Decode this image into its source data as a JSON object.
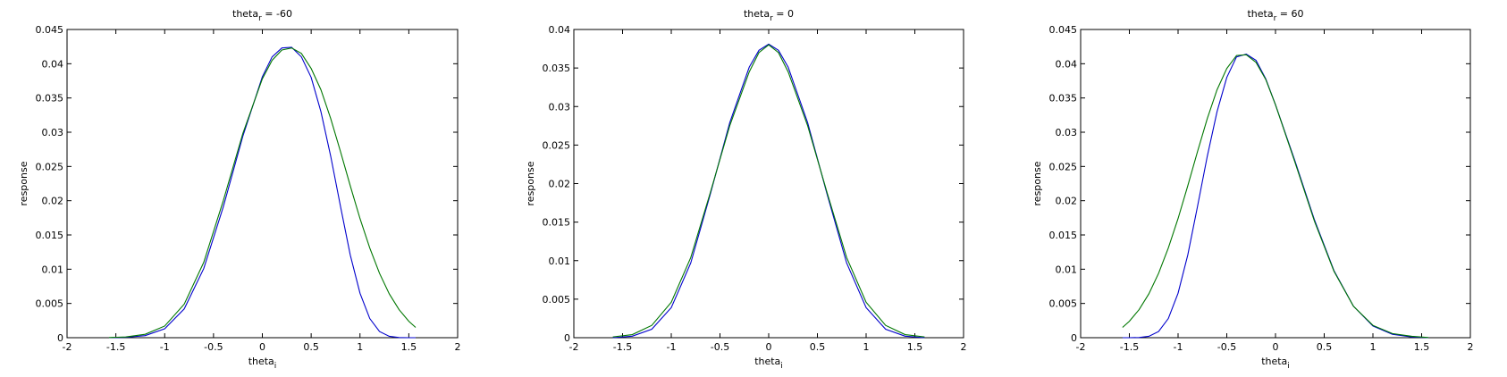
{
  "chart_data": [
    {
      "type": "line",
      "title": "theta",
      "title_sub": "r",
      "title_suffix": " = -60",
      "xlabel": "theta",
      "xlabel_sub": "i",
      "ylabel": "response",
      "xlim": [
        -2,
        2
      ],
      "ylim": [
        0,
        0.045
      ],
      "xticks": [
        -2,
        -1.5,
        -1,
        -0.5,
        0,
        0.5,
        1,
        1.5,
        2
      ],
      "xtick_labels": [
        "-2",
        "-1.5",
        "-1",
        "-0.5",
        "0",
        "0.5",
        "1",
        "1.5",
        "2"
      ],
      "yticks": [
        0,
        0.005,
        0.01,
        0.015,
        0.02,
        0.025,
        0.03,
        0.035,
        0.04,
        0.045
      ],
      "ytick_labels": [
        "0",
        "0.005",
        "0.01",
        "0.015",
        "0.02",
        "0.025",
        "0.03",
        "0.035",
        "0.04",
        "0.045"
      ],
      "grid": false,
      "series": [
        {
          "color": "#0000cc",
          "x": [
            -1.57,
            -1.4,
            -1.2,
            -1.0,
            -0.8,
            -0.6,
            -0.4,
            -0.2,
            0.0,
            0.1,
            0.2,
            0.3,
            0.4,
            0.5,
            0.6,
            0.7,
            0.8,
            0.9,
            1.0,
            1.1,
            1.2,
            1.3,
            1.4,
            1.5,
            1.57
          ],
          "y": [
            0,
            5e-05,
            0.0003,
            0.0013,
            0.0042,
            0.0101,
            0.0191,
            0.0294,
            0.0381,
            0.041,
            0.0423,
            0.0424,
            0.041,
            0.038,
            0.033,
            0.0265,
            0.0192,
            0.0121,
            0.0065,
            0.0028,
            0.0009,
            0.0002,
            3e-05,
            0,
            0
          ]
        },
        {
          "color": "#007700",
          "x": [
            -1.57,
            -1.4,
            -1.2,
            -1.0,
            -0.8,
            -0.6,
            -0.4,
            -0.2,
            0.0,
            0.1,
            0.2,
            0.3,
            0.4,
            0.5,
            0.6,
            0.7,
            0.8,
            0.9,
            1.0,
            1.1,
            1.2,
            1.3,
            1.4,
            1.5,
            1.57
          ],
          "y": [
            3e-05,
            0.0001,
            0.0005,
            0.0017,
            0.0049,
            0.011,
            0.02,
            0.0298,
            0.0378,
            0.0405,
            0.042,
            0.0423,
            0.0415,
            0.0393,
            0.0362,
            0.032,
            0.0272,
            0.0222,
            0.0174,
            0.0131,
            0.0094,
            0.0064,
            0.0041,
            0.0024,
            0.0015
          ]
        }
      ]
    },
    {
      "type": "line",
      "title": "theta",
      "title_sub": "r",
      "title_suffix": " = 0",
      "xlabel": "theta",
      "xlabel_sub": "i",
      "ylabel": "response",
      "xlim": [
        -2,
        2
      ],
      "ylim": [
        0,
        0.04
      ],
      "xticks": [
        -2,
        -1.5,
        -1,
        -0.5,
        0,
        0.5,
        1,
        1.5,
        2
      ],
      "xtick_labels": [
        "-2",
        "-1.5",
        "-1",
        "-0.5",
        "0",
        "0.5",
        "1",
        "1.5",
        "2"
      ],
      "yticks": [
        0,
        0.005,
        0.01,
        0.015,
        0.02,
        0.025,
        0.03,
        0.035,
        0.04
      ],
      "ytick_labels": [
        "0",
        "0.005",
        "0.01",
        "0.015",
        "0.02",
        "0.025",
        "0.03",
        "0.035",
        "0.04"
      ],
      "grid": false,
      "series": [
        {
          "color": "#0000cc",
          "x": [
            -1.6,
            -1.4,
            -1.2,
            -1.0,
            -0.8,
            -0.6,
            -0.4,
            -0.2,
            -0.1,
            0.0,
            0.1,
            0.2,
            0.4,
            0.6,
            0.8,
            1.0,
            1.2,
            1.4,
            1.6
          ],
          "y": [
            0,
            0.0002,
            0.0011,
            0.0039,
            0.0097,
            0.0186,
            0.0279,
            0.0351,
            0.0373,
            0.0381,
            0.0373,
            0.0351,
            0.0279,
            0.0186,
            0.0097,
            0.0039,
            0.0011,
            0.0002,
            0
          ]
        },
        {
          "color": "#007700",
          "x": [
            -1.6,
            -1.4,
            -1.2,
            -1.0,
            -0.8,
            -0.6,
            -0.4,
            -0.2,
            -0.1,
            0.0,
            0.1,
            0.2,
            0.4,
            0.6,
            0.8,
            1.0,
            1.2,
            1.4,
            1.6
          ],
          "y": [
            0.0001,
            0.0004,
            0.0016,
            0.0046,
            0.0104,
            0.0188,
            0.0275,
            0.0345,
            0.037,
            0.038,
            0.037,
            0.0345,
            0.0275,
            0.0188,
            0.0104,
            0.0046,
            0.0016,
            0.0004,
            0.0001
          ]
        }
      ]
    },
    {
      "type": "line",
      "title": "theta",
      "title_sub": "r",
      "title_suffix": " = 60",
      "xlabel": "theta",
      "xlabel_sub": "i",
      "ylabel": "response",
      "xlim": [
        -2,
        2
      ],
      "ylim": [
        0,
        0.045
      ],
      "xticks": [
        -2,
        -1.5,
        -1,
        -0.5,
        0,
        0.5,
        1,
        1.5,
        2
      ],
      "xtick_labels": [
        "-2",
        "-1.5",
        "-1",
        "-0.5",
        "0",
        "0.5",
        "1",
        "1.5",
        "2"
      ],
      "yticks": [
        0,
        0.005,
        0.01,
        0.015,
        0.02,
        0.025,
        0.03,
        0.035,
        0.04,
        0.045
      ],
      "ytick_labels": [
        "0",
        "0.005",
        "0.01",
        "0.015",
        "0.02",
        "0.025",
        "0.03",
        "0.035",
        "0.04",
        "0.045"
      ],
      "grid": false,
      "series": [
        {
          "color": "#0000cc",
          "x": [
            -1.57,
            -1.5,
            -1.4,
            -1.3,
            -1.2,
            -1.1,
            -1.0,
            -0.9,
            -0.8,
            -0.7,
            -0.6,
            -0.5,
            -0.4,
            -0.3,
            -0.2,
            -0.1,
            0.0,
            0.2,
            0.4,
            0.6,
            0.8,
            1.0,
            1.2,
            1.4,
            1.57
          ],
          "y": [
            0,
            0,
            3e-05,
            0.0002,
            0.0009,
            0.0028,
            0.0065,
            0.0121,
            0.0192,
            0.0265,
            0.033,
            0.038,
            0.041,
            0.0414,
            0.0405,
            0.0378,
            0.034,
            0.0258,
            0.0172,
            0.0098,
            0.0046,
            0.0017,
            0.0005,
            0.0001,
            0
          ]
        },
        {
          "color": "#007700",
          "x": [
            -1.57,
            -1.5,
            -1.4,
            -1.3,
            -1.2,
            -1.1,
            -1.0,
            -0.9,
            -0.8,
            -0.7,
            -0.6,
            -0.5,
            -0.4,
            -0.3,
            -0.2,
            -0.1,
            0.0,
            0.2,
            0.4,
            0.6,
            0.8,
            1.0,
            1.2,
            1.4,
            1.57
          ],
          "y": [
            0.0015,
            0.0024,
            0.0041,
            0.0064,
            0.0094,
            0.0131,
            0.0174,
            0.0222,
            0.0272,
            0.032,
            0.0362,
            0.0393,
            0.0412,
            0.0413,
            0.0402,
            0.0377,
            0.034,
            0.0256,
            0.017,
            0.0097,
            0.0046,
            0.0018,
            0.0006,
            0.0002,
            3e-05
          ]
        }
      ]
    }
  ]
}
